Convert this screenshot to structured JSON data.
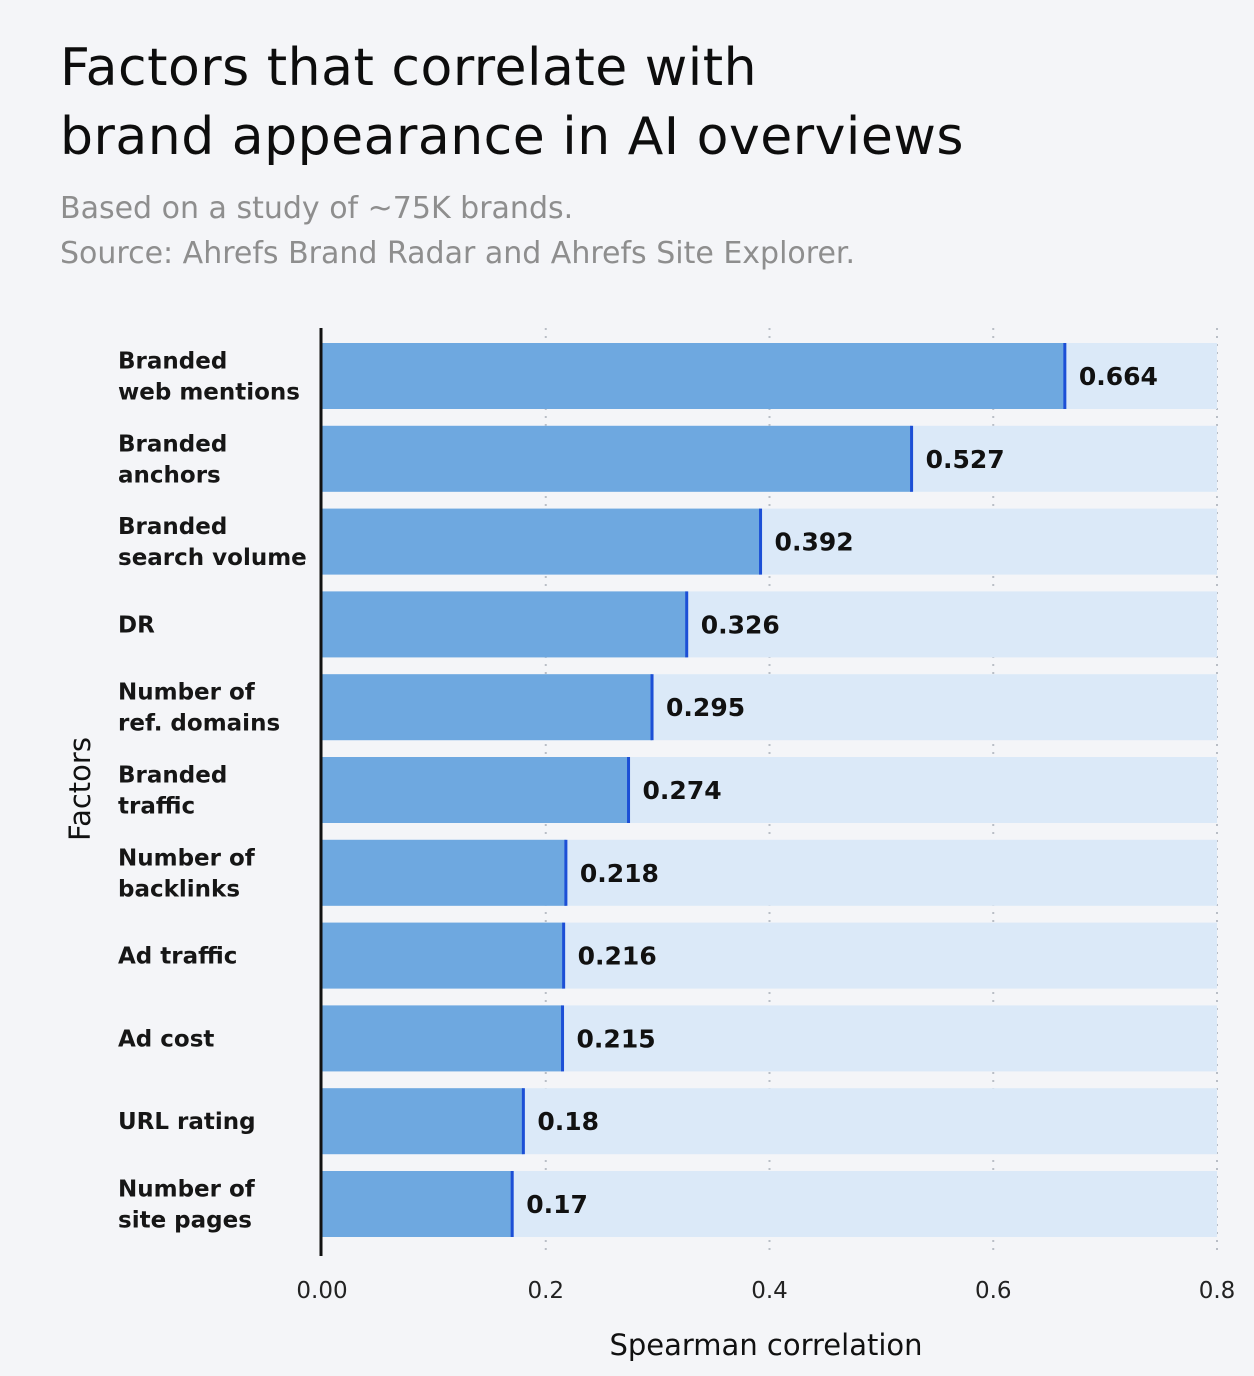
{
  "header": {
    "title_lines": [
      "Factors that correlate with",
      "brand appearance in AI overviews"
    ],
    "subtitle_lines": [
      "Based on a study of ~75K brands.",
      "Source: Ahrefs Brand Radar and Ahrefs Site Explorer."
    ]
  },
  "colors": {
    "bar": "#6ea8e0",
    "track": "#dbe9f8",
    "value_marker": "#1c4fd6",
    "axis": "#111111",
    "grid": "#b9bec6"
  },
  "chart_data": {
    "type": "bar",
    "orientation": "horizontal",
    "title": "Factors that correlate with brand appearance in AI overviews",
    "xlabel": "Spearman correlation",
    "ylabel": "Factors",
    "xlim": [
      0,
      0.8
    ],
    "xticks": [
      0,
      0.2,
      0.4,
      0.6,
      0.8
    ],
    "xtick_labels": [
      "0.00",
      "0.2",
      "0.4",
      "0.6",
      "0.8"
    ],
    "grid": "vertical dotted",
    "categories": [
      [
        "Branded",
        "web mentions"
      ],
      [
        "Branded",
        "anchors"
      ],
      [
        "Branded",
        "search volume"
      ],
      [
        "DR"
      ],
      [
        "Number of",
        "ref. domains"
      ],
      [
        "Branded",
        "traffic"
      ],
      [
        "Number of",
        "backlinks"
      ],
      [
        "Ad traffic"
      ],
      [
        "Ad cost"
      ],
      [
        "URL rating"
      ],
      [
        "Number of",
        "site pages"
      ]
    ],
    "values": [
      0.664,
      0.527,
      0.392,
      0.326,
      0.295,
      0.274,
      0.218,
      0.216,
      0.215,
      0.18,
      0.17
    ],
    "value_labels": [
      "0.664",
      "0.527",
      "0.392",
      "0.326",
      "0.295",
      "0.274",
      "0.218",
      "0.216",
      "0.215",
      "0.18",
      "0.17"
    ]
  }
}
